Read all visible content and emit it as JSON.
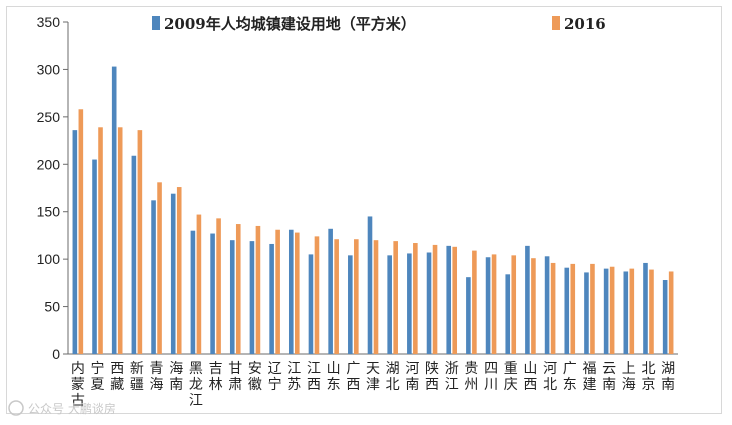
{
  "colors": {
    "series_2009": "#4e86bd",
    "series_2016": "#ee9a58",
    "axis": "#6b6b6b",
    "text": "#222222",
    "watermark": "#c8c8c8"
  },
  "watermark": "公众号 大鹏谈房",
  "chart_data": {
    "type": "bar",
    "title": "",
    "xlabel": "",
    "ylabel": "",
    "ylim": [
      0,
      350
    ],
    "yticks": [
      0,
      50,
      100,
      150,
      200,
      250,
      300,
      350
    ],
    "grid": false,
    "legend_position": "top",
    "categories": [
      "内蒙古",
      "宁夏",
      "西藏",
      "新疆",
      "青海",
      "海南",
      "黑龙江",
      "吉林",
      "甘肃",
      "安徽",
      "辽宁",
      "江苏",
      "江西",
      "山东",
      "广西",
      "天津",
      "湖北",
      "河南",
      "陕西",
      "浙江",
      "贵州",
      "四川",
      "重庆",
      "山西",
      "河北",
      "广东",
      "福建",
      "云南",
      "上海",
      "北京",
      "湖南"
    ],
    "series": [
      {
        "name": "2009年人均城镇建设用地（平方米）",
        "color": "#4e86bd",
        "values": [
          236,
          205,
          303,
          209,
          162,
          169,
          130,
          127,
          120,
          119,
          116,
          131,
          105,
          132,
          104,
          145,
          104,
          106,
          107,
          114,
          81,
          102,
          84,
          114,
          103,
          91,
          86,
          90,
          87,
          96,
          78
        ]
      },
      {
        "name": "2016",
        "color": "#ee9a58",
        "values": [
          258,
          239,
          239,
          236,
          181,
          176,
          147,
          143,
          137,
          135,
          131,
          128,
          124,
          121,
          121,
          120,
          119,
          117,
          115,
          113,
          109,
          105,
          104,
          101,
          96,
          95,
          95,
          92,
          90,
          89,
          87
        ]
      }
    ]
  }
}
